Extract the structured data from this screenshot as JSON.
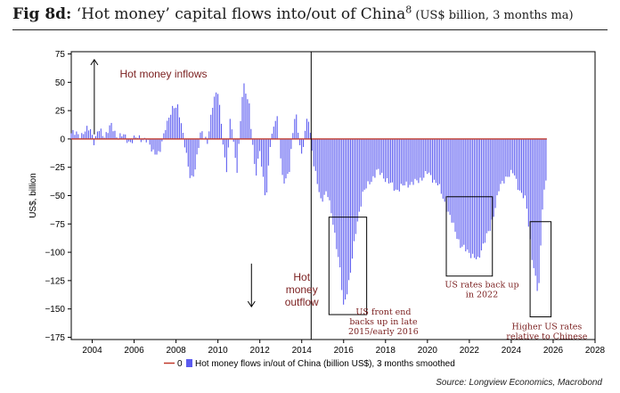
{
  "header": {
    "fig_label": "Fig 8d:",
    "title_main": " ‘Hot money’ capital flows into/out of China",
    "title_sup": "8",
    "title_sub": " (US$ billion, 3 months ma)"
  },
  "source": "Source: Longview Economics, Macrobond",
  "colors": {
    "bars": "#5b5bf0",
    "zero_line": "#c0392b",
    "annotation": "#7b1f1f",
    "axis": "#000000"
  },
  "chart_data": {
    "type": "bar",
    "ylabel": "US$, billion",
    "xlim": [
      2003,
      2028
    ],
    "ylim": [
      -177,
      77
    ],
    "x_ticks": [
      2004,
      2006,
      2008,
      2010,
      2012,
      2014,
      2016,
      2018,
      2020,
      2022,
      2024,
      2026,
      2028
    ],
    "y_ticks": [
      75,
      50,
      25,
      0,
      -25,
      -50,
      -75,
      -100,
      -125,
      -150,
      -175
    ],
    "y_tick_labels": [
      "75",
      "50",
      "25",
      "0",
      "−25",
      "−50",
      "−75",
      "−100",
      "−125",
      "−150",
      "−175"
    ],
    "legend": {
      "placement": "bottom",
      "items": [
        {
          "label": "0",
          "kind": "line"
        },
        {
          "label": "Hot money flows in/out of China (billion US$), 3 months smoothed",
          "kind": "bar"
        }
      ]
    },
    "anchors": [
      [
        2003.0,
        5
      ],
      [
        2003.5,
        4
      ],
      [
        2003.9,
        10
      ],
      [
        2004.1,
        -3
      ],
      [
        2004.3,
        8
      ],
      [
        2004.6,
        3
      ],
      [
        2004.9,
        12
      ],
      [
        2005.2,
        2
      ],
      [
        2005.5,
        3
      ],
      [
        2005.8,
        -3
      ],
      [
        2006.2,
        2
      ],
      [
        2006.6,
        -2
      ],
      [
        2006.9,
        -10
      ],
      [
        2007.2,
        -15
      ],
      [
        2007.5,
        12
      ],
      [
        2007.9,
        28
      ],
      [
        2008.1,
        30
      ],
      [
        2008.4,
        -5
      ],
      [
        2008.7,
        -35
      ],
      [
        2008.9,
        -30
      ],
      [
        2009.2,
        10
      ],
      [
        2009.5,
        -5
      ],
      [
        2009.8,
        38
      ],
      [
        2010.0,
        42
      ],
      [
        2010.2,
        5
      ],
      [
        2010.4,
        -30
      ],
      [
        2010.6,
        20
      ],
      [
        2010.9,
        -30
      ],
      [
        2011.2,
        48
      ],
      [
        2011.5,
        30
      ],
      [
        2011.8,
        -35
      ],
      [
        2012.0,
        -10
      ],
      [
        2012.3,
        -55
      ],
      [
        2012.5,
        -5
      ],
      [
        2012.8,
        25
      ],
      [
        2013.1,
        -40
      ],
      [
        2013.4,
        -28
      ],
      [
        2013.7,
        25
      ],
      [
        2014.0,
        -15
      ],
      [
        2014.3,
        22
      ],
      [
        2014.6,
        -25
      ],
      [
        2014.9,
        -55
      ],
      [
        2015.2,
        -45
      ],
      [
        2015.5,
        -75
      ],
      [
        2015.8,
        -110
      ],
      [
        2016.0,
        -150
      ],
      [
        2016.3,
        -120
      ],
      [
        2016.6,
        -80
      ],
      [
        2016.9,
        -48
      ],
      [
        2017.2,
        -40
      ],
      [
        2017.6,
        -28
      ],
      [
        2018.0,
        -35
      ],
      [
        2018.5,
        -45
      ],
      [
        2019.0,
        -40
      ],
      [
        2019.5,
        -38
      ],
      [
        2020.0,
        -30
      ],
      [
        2020.5,
        -40
      ],
      [
        2020.9,
        -60
      ],
      [
        2021.2,
        -75
      ],
      [
        2021.6,
        -95
      ],
      [
        2022.0,
        -100
      ],
      [
        2022.4,
        -108
      ],
      [
        2022.7,
        -90
      ],
      [
        2023.0,
        -80
      ],
      [
        2023.4,
        -45
      ],
      [
        2023.8,
        -32
      ],
      [
        2024.1,
        -30
      ],
      [
        2024.4,
        -45
      ],
      [
        2024.7,
        -55
      ],
      [
        2025.0,
        -105
      ],
      [
        2025.3,
        -140
      ],
      [
        2025.5,
        -55
      ],
      [
        2025.7,
        -30
      ]
    ],
    "bar_step_years": 0.0833,
    "bar_x_range": [
      2003.0,
      2025.7
    ],
    "vertical_marker_x": 2014.45,
    "annotations": [
      {
        "text_lines": [
          "Hot money inflows"
        ],
        "at": [
          2007.4,
          54
        ],
        "style": "sans"
      },
      {
        "text_lines": [
          "Hot",
          "money",
          "outflow"
        ],
        "at": [
          2014.0,
          -125
        ],
        "style": "sans"
      },
      {
        "text_lines": [
          "US front end",
          "backs up in late",
          "2015/early 2016"
        ],
        "at": [
          2017.9,
          -155
        ],
        "style": "serif"
      },
      {
        "text_lines": [
          "US rates back up",
          "in 2022"
        ],
        "at": [
          2022.6,
          -131
        ],
        "style": "serif"
      },
      {
        "text_lines": [
          "Higher US rates",
          "relative to Chinese"
        ],
        "at": [
          2025.7,
          -168
        ],
        "style": "serif"
      }
    ],
    "boxes": [
      {
        "x": [
          2015.3,
          2017.1
        ],
        "y": [
          -155,
          -69
        ]
      },
      {
        "x": [
          2020.9,
          2023.1
        ],
        "y": [
          -121,
          -51
        ]
      },
      {
        "x": [
          2024.9,
          2025.9
        ],
        "y": [
          -157,
          -73
        ]
      }
    ],
    "arrows": [
      {
        "x": 2004.1,
        "from": 4,
        "to": 70
      },
      {
        "x": 2011.6,
        "from": -110,
        "to": -148
      }
    ]
  }
}
